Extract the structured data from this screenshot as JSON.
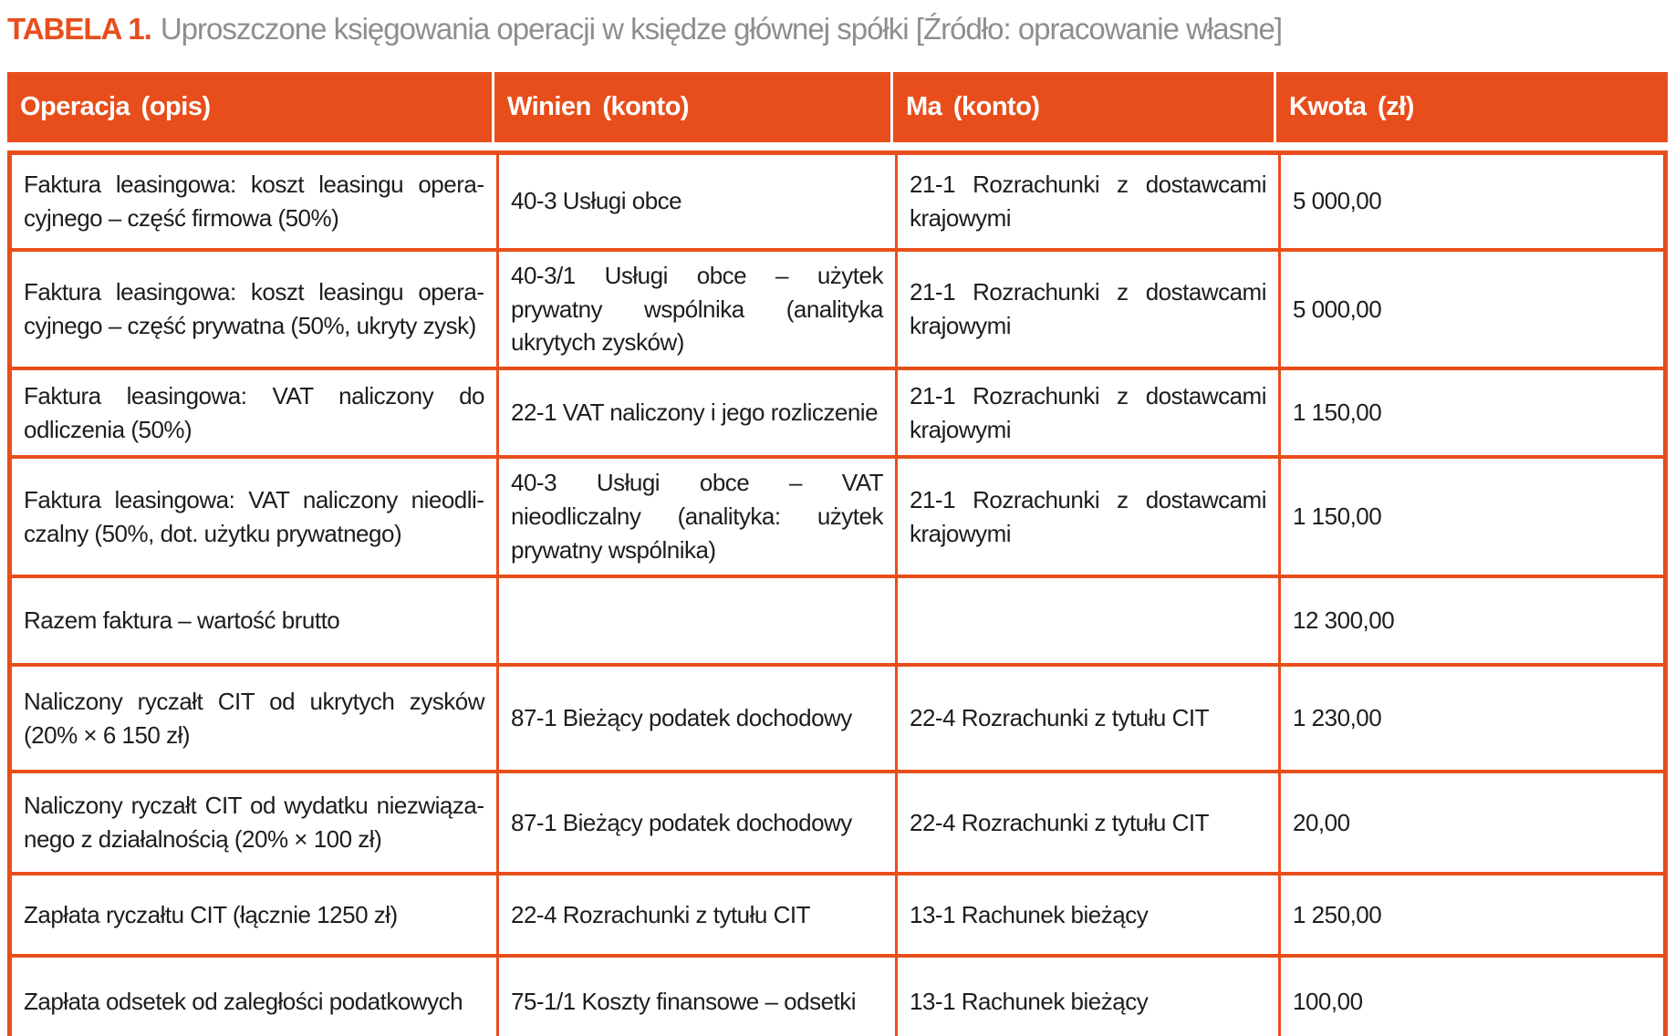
{
  "caption": {
    "label": "TABELA 1.",
    "text": "Uproszczone księgowania operacji w księdze głównej spółki [Źródło: opracowanie własne]"
  },
  "table": {
    "columns": [
      "Operacja (opis)",
      "Winien (konto)",
      "Ma (konto)",
      "Kwota (zł)"
    ],
    "rows": [
      {
        "operacja": "Faktura leasingowa: koszt leasingu opera­cyjnego – część firmowa (50%)",
        "winien": "40-3 Usługi obce",
        "ma": "21-1 Rozrachunki z dostawcami krajowymi",
        "kwota": "5 000,00"
      },
      {
        "operacja": "Faktura leasingowa: koszt leasingu opera­cyjnego – część prywatna (50%, ukryty zysk)",
        "winien": "40-3/1 Usługi obce – użytek prywatny wspólnika (analityka ukrytych zysków)",
        "ma": "21-1 Rozrachunki z dostawcami krajowymi",
        "kwota": "5 000,00"
      },
      {
        "operacja": "Faktura leasingowa: VAT naliczony do odliczenia (50%)",
        "winien": "22-1 VAT naliczony i jego rozliczenie",
        "ma": "21-1 Rozrachunki z dostawcami krajowymi",
        "kwota": "1 150,00"
      },
      {
        "operacja": "Faktura leasingowa: VAT naliczony nieodli­czalny (50%, dot. użytku prywatnego)",
        "winien": "40-3 Usługi obce – VAT nieodliczalny (analityka: użytek prywatny wspólnika)",
        "ma": "21-1 Rozrachunki z dostawcami krajowymi",
        "kwota": "1 150,00"
      },
      {
        "operacja": "Razem faktura – wartość brutto",
        "winien": "",
        "ma": "",
        "kwota": "12 300,00"
      },
      {
        "operacja": "Naliczony ryczałt CIT od ukrytych zysków (20% × 6 150 zł)",
        "winien": "87-1 Bieżący podatek dochodowy",
        "ma": "22-4 Rozrachunki z tytułu CIT",
        "kwota": "1 230,00"
      },
      {
        "operacja": "Naliczony ryczałt CIT od wydatku niezwiąza­nego z działalnością (20% × 100 zł)",
        "winien": "87-1 Bieżący podatek dochodowy",
        "ma": "22-4 Rozrachunki z tytułu CIT",
        "kwota": "20,00"
      },
      {
        "operacja": "Zapłata ryczałtu CIT (łącznie 1250 zł)",
        "winien": "22-4 Rozrachunki z tytułu CIT",
        "ma": "13-1 Rachunek bieżący",
        "kwota": "1 250,00"
      },
      {
        "operacja": "Zapłata odsetek od zaległości podatkowych",
        "winien": "75-1/1 Koszty finansowe – odsetki",
        "ma": "13-1 Rachunek bieżący",
        "kwota": "100,00"
      }
    ]
  },
  "colors": {
    "accent_orange": "#e84e1b",
    "caption_gray": "#8e8e8e",
    "body_text": "#1d1d1b",
    "header_text": "#ffffff"
  }
}
